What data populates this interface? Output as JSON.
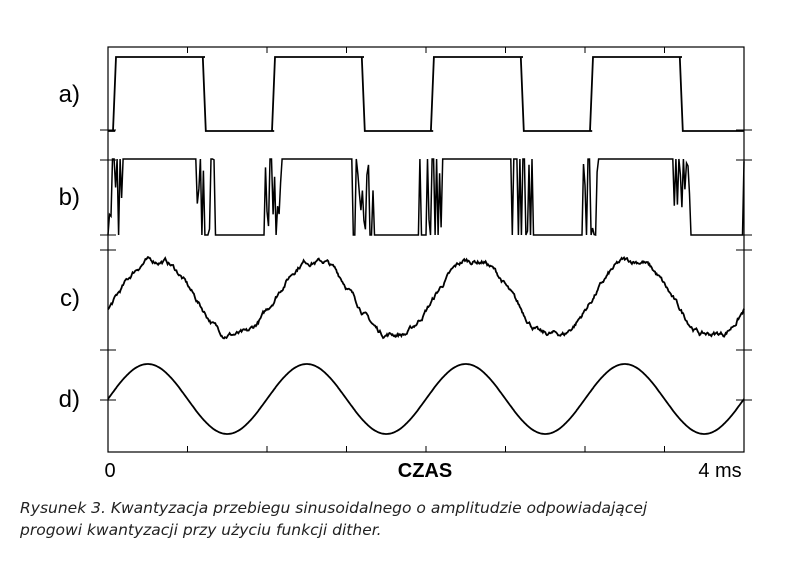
{
  "chart_data": {
    "type": "line",
    "xlabel": "CZAS",
    "x_tick_labels": [
      "0",
      "4 ms"
    ],
    "xlim": [
      0,
      4
    ],
    "x_unit": "ms",
    "grid": false,
    "legend": "none",
    "line_color": "#000000",
    "series": [
      {
        "label": "a)",
        "kind": "quantized-square",
        "period_ms": 1.0,
        "levels": [
          "low",
          "high"
        ]
      },
      {
        "label": "b)",
        "kind": "dithered-quantized",
        "period_ms": 1.0,
        "levels": [
          "low",
          "high"
        ]
      },
      {
        "label": "c)",
        "kind": "filtered-dithered",
        "period_ms": 1.0
      },
      {
        "label": "d)",
        "kind": "sine",
        "period_ms": 1.0
      }
    ]
  },
  "caption": {
    "line1": "Rysunek 3. Kwantyzacja przebiegu sinusoidalnego o amplitudzie odpowiadającej",
    "line2": "progowi kwantyzacji przy użyciu funkcji dither."
  }
}
